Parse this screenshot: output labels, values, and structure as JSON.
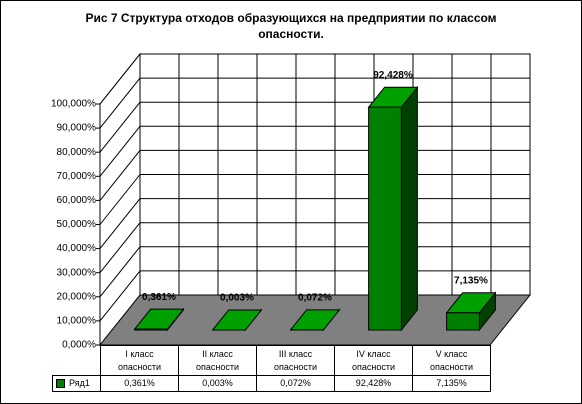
{
  "chart_data": {
    "type": "bar3d",
    "title": "Рис 7 Структура отходов образующихся на предприятии по классом опасности.",
    "categories": [
      "I класс опасности",
      "II класс опасности",
      "III класс опасности",
      "IV класс опасности",
      "V класс опасности"
    ],
    "series": [
      {
        "name": "Ряд1",
        "color": "#008000",
        "values": [
          0.361,
          0.003,
          0.072,
          92.428,
          7.135
        ],
        "value_labels": [
          "0,361%",
          "0,003%",
          "0,072%",
          "92,428%",
          "7,135%"
        ]
      }
    ],
    "ylim": [
      0,
      100
    ],
    "yticks": [
      {
        "value": 0,
        "label": "0,000%"
      },
      {
        "value": 10,
        "label": "10,000%"
      },
      {
        "value": 20,
        "label": "20,000%"
      },
      {
        "value": 30,
        "label": "30,000%"
      },
      {
        "value": 40,
        "label": "40,000%"
      },
      {
        "value": 50,
        "label": "50,000%"
      },
      {
        "value": 60,
        "label": "60,000%"
      },
      {
        "value": 70,
        "label": "70,000%"
      },
      {
        "value": 80,
        "label": "80,000%"
      },
      {
        "value": 90,
        "label": "90,000%"
      },
      {
        "value": 100,
        "label": "100,000%"
      }
    ],
    "grid": true
  }
}
